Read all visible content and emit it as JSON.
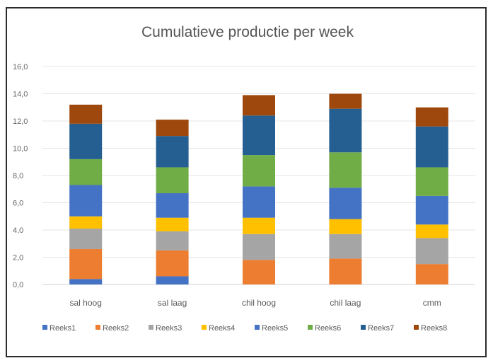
{
  "chart_data": {
    "type": "bar",
    "stacked": true,
    "title": "Cumulatieve productie per week",
    "xlabel": "",
    "ylabel": "",
    "ylim": [
      0,
      16
    ],
    "yticks": [
      "0,0",
      "2,0",
      "4,0",
      "6,0",
      "8,0",
      "10,0",
      "12,0",
      "14,0",
      "16,0"
    ],
    "grid": true,
    "legend_position": "bottom",
    "categories": [
      "sal hoog",
      "sal laag",
      "chil hoog",
      "chil laag",
      "cmm"
    ],
    "series": [
      {
        "name": "Reeks1",
        "color": "#4472C4",
        "values": [
          0.4,
          0.6,
          0.0,
          0.0,
          0.0
        ]
      },
      {
        "name": "Reeks2",
        "color": "#ED7D31",
        "values": [
          2.2,
          1.9,
          1.8,
          1.9,
          1.5
        ]
      },
      {
        "name": "Reeks3",
        "color": "#A5A5A5",
        "values": [
          1.5,
          1.4,
          1.9,
          1.8,
          1.9
        ]
      },
      {
        "name": "Reeks4",
        "color": "#FFC000",
        "values": [
          0.9,
          1.0,
          1.2,
          1.1,
          1.0
        ]
      },
      {
        "name": "Reeks5",
        "color": "#4472C4",
        "values": [
          2.3,
          1.8,
          2.3,
          2.3,
          2.1
        ]
      },
      {
        "name": "Reeks6",
        "color": "#70AD47",
        "values": [
          1.9,
          1.9,
          2.3,
          2.6,
          2.1
        ]
      },
      {
        "name": "Reeks7",
        "color": "#255E91",
        "values": [
          2.6,
          2.3,
          2.9,
          3.2,
          3.0
        ]
      },
      {
        "name": "Reeks8",
        "color": "#9E480E",
        "values": [
          1.4,
          1.2,
          1.5,
          1.1,
          1.4
        ]
      }
    ]
  }
}
